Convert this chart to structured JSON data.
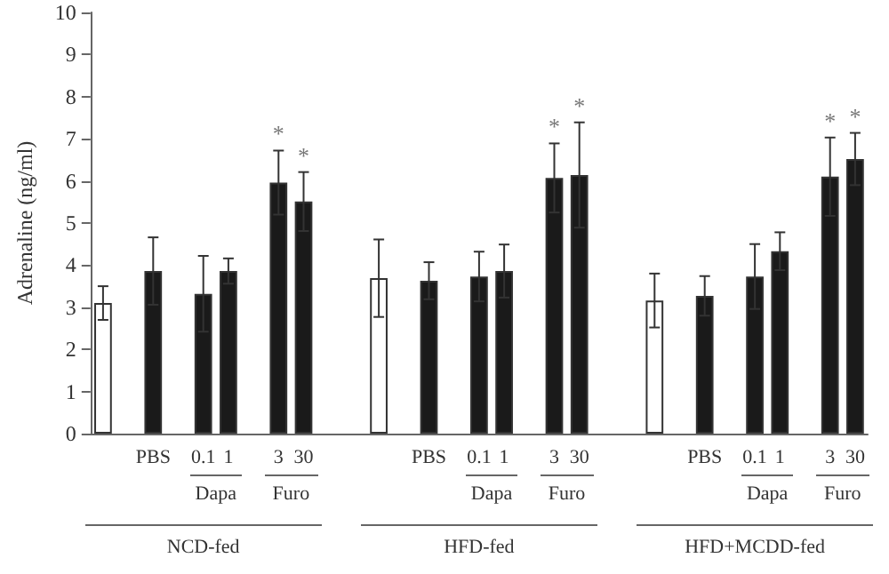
{
  "chart_data": {
    "type": "bar",
    "ylabel": "Adrenaline (ng/ml)",
    "categories": [
      null,
      null,
      "PBS",
      null,
      "0.1",
      "1",
      null,
      "3",
      "30",
      null,
      null,
      null,
      null,
      "PBS",
      null,
      "0.1",
      "1",
      null,
      "3",
      "30",
      null,
      null,
      null,
      null,
      "PBS",
      null,
      "0.1",
      "1",
      null,
      "3",
      "30"
    ],
    "values": [
      3.1,
      null,
      3.86,
      null,
      3.32,
      3.86,
      null,
      5.96,
      5.51,
      null,
      null,
      3.69,
      null,
      3.63,
      null,
      3.73,
      3.86,
      null,
      6.07,
      6.14,
      null,
      null,
      3.16,
      null,
      3.27,
      null,
      3.73,
      4.33,
      null,
      6.1,
      6.52
    ],
    "errors": [
      0.4,
      null,
      0.8,
      null,
      0.9,
      0.3,
      null,
      0.76,
      0.7,
      null,
      null,
      0.92,
      null,
      0.44,
      null,
      0.59,
      0.63,
      null,
      0.82,
      1.25,
      null,
      null,
      0.64,
      null,
      0.47,
      null,
      0.77,
      0.45,
      null,
      0.93,
      0.62
    ],
    "colors": [
      "#ffffff",
      "#ffffff",
      "#1a1a1a",
      "#ffffff",
      "#1a1a1a",
      "#1a1a1a",
      "#ffffff",
      "#1a1a1a",
      "#1a1a1a",
      "#ffffff",
      "#ffffff",
      "#ffffff",
      "#ffffff",
      "#1a1a1a",
      "#ffffff",
      "#1a1a1a",
      "#1a1a1a",
      "#ffffff",
      "#1a1a1a",
      "#1a1a1a",
      "#ffffff",
      "#ffffff",
      "#ffffff",
      "#ffffff",
      "#1a1a1a",
      "#ffffff",
      "#1a1a1a",
      "#1a1a1a",
      "#ffffff",
      "#1a1a1a",
      "#1a1a1a"
    ],
    "value_labels": [
      null,
      null,
      null,
      null,
      null,
      null,
      null,
      "*",
      "*",
      null,
      null,
      null,
      null,
      null,
      null,
      null,
      null,
      null,
      "*",
      "*",
      null,
      null,
      null,
      null,
      null,
      null,
      null,
      null,
      null,
      "*",
      "*"
    ],
    "ylim": [
      0,
      10
    ],
    "yticks": [
      0,
      1,
      2,
      3,
      4,
      5,
      6,
      7,
      8,
      9,
      10
    ],
    "grid": false,
    "annotations": [
      "Dapa",
      "Furo",
      "NCD-fed",
      "Dapa",
      "Furo",
      "HFD-fed",
      "Dapa",
      "Furo",
      "HFD+MCDD-fed"
    ]
  }
}
